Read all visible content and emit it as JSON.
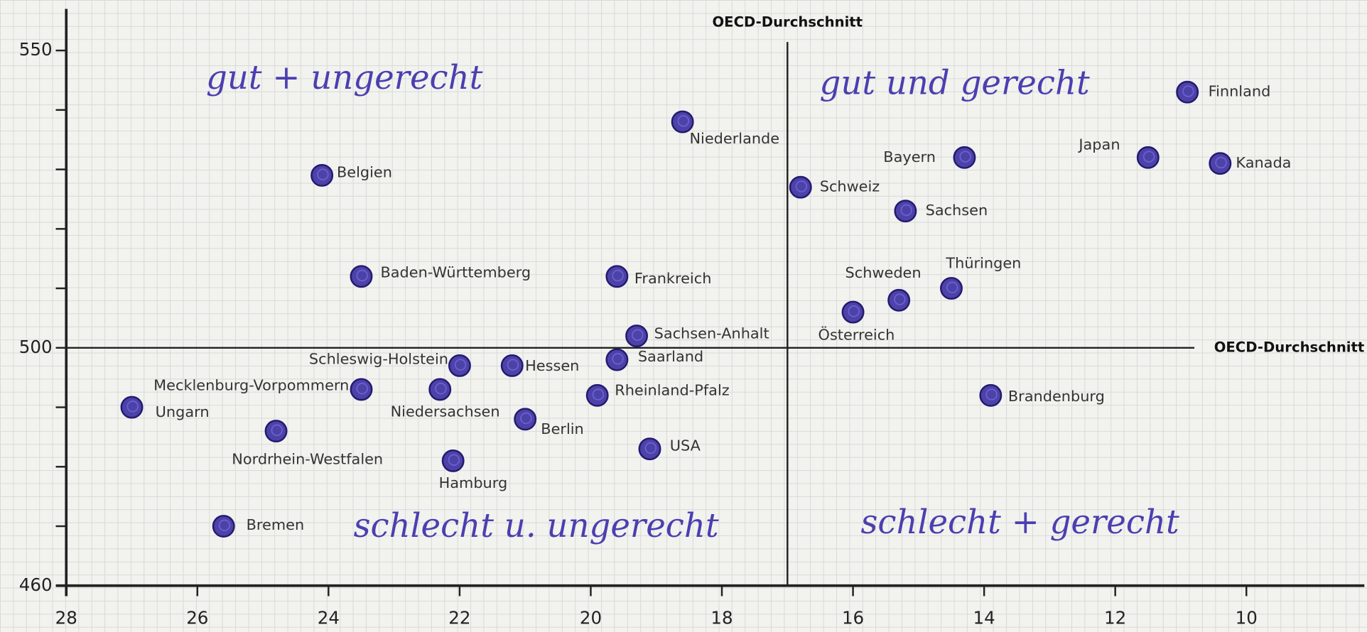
{
  "chart_data": {
    "type": "scatter",
    "labels": [
      "Finnland",
      "Kanada",
      "Japan",
      "Bayern",
      "Schweiz",
      "Sachsen",
      "Schweden",
      "Thüringen",
      "Österreich",
      "Brandenburg",
      "Niederlande",
      "Belgien",
      "Baden-Württemberg",
      "Frankreich",
      "Sachsen-Anhalt",
      "Schleswig-Holstein",
      "Hessen",
      "Saarland",
      "Mecklenburg-Vorpommern",
      "Niedersachsen",
      "Rheinland-Pfalz",
      "Ungarn",
      "Nordrhein-Westfalen",
      "Berlin",
      "USA",
      "Hamburg",
      "Bremen"
    ],
    "x": [
      10.9,
      10.4,
      11.5,
      14.3,
      16.8,
      15.2,
      15.3,
      14.5,
      16.0,
      13.9,
      18.6,
      24.1,
      23.5,
      19.6,
      19.3,
      22.0,
      21.2,
      19.6,
      23.5,
      22.3,
      19.9,
      27.0,
      24.8,
      21.0,
      19.1,
      22.1,
      25.6
    ],
    "y": [
      543,
      531,
      532,
      532,
      527,
      523,
      508,
      510,
      506,
      492,
      538,
      529,
      512,
      512,
      502,
      497,
      497,
      498,
      493,
      493,
      492,
      490,
      486,
      488,
      483,
      481,
      470
    ],
    "color": "#3b2f9e",
    "xlim": [
      28,
      8.2
    ],
    "xticks": [
      28,
      26,
      24,
      22,
      20,
      18,
      16,
      14,
      12,
      10
    ],
    "ylim": [
      460,
      557
    ],
    "yticks": [
      460,
      500,
      550
    ],
    "yminorticks": [
      470,
      480,
      490,
      510,
      520,
      530,
      540
    ],
    "reference_lines": [
      {
        "axis": "x",
        "value": 17,
        "label": "OECD-Durchschnitt"
      },
      {
        "axis": "y",
        "value": 500,
        "label": "OECD-Durchschnitt"
      }
    ],
    "annotations": [
      "gut + ungerecht",
      "gut und gerecht",
      "schlecht u. ungerecht",
      "schlecht + gerecht"
    ]
  }
}
